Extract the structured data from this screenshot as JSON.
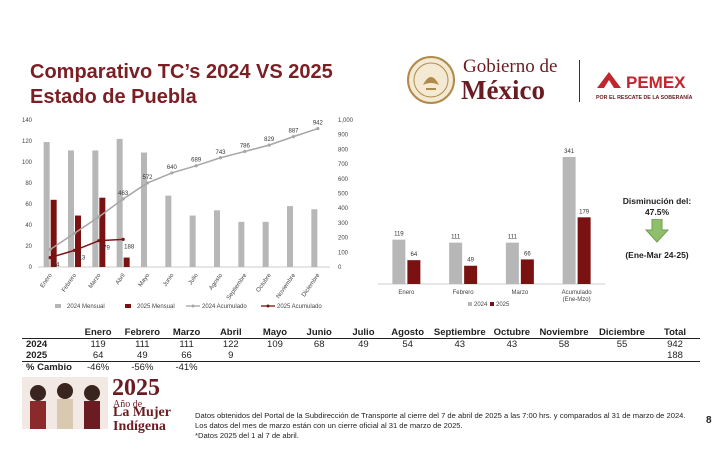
{
  "header": {
    "title_line1": "Comparativo TC’s 2024 VS 2025",
    "title_line2": "Estado de Puebla",
    "gobierno_line1": "Gobierno de",
    "gobierno_line2": "México",
    "pemex_name": "PEMEX",
    "pemex_tagline": "POR EL RESCATE DE LA SOBERANÍA"
  },
  "colors": {
    "gray_bar": "#b7b7b7",
    "red_bar": "#7b1212",
    "line_gray": "#a6a6a6",
    "line_red": "#7b1212",
    "title": "#7b1f24",
    "arrow": "#8fbf6a"
  },
  "chart_data": [
    {
      "type": "bar",
      "title": "",
      "categories": [
        "Enero",
        "Febrero",
        "Marzo",
        "Abril",
        "Mayo",
        "Junio",
        "Julio",
        "Agosto",
        "Septiembre",
        "Octubre",
        "Noviembre",
        "Diciembre"
      ],
      "y_left_ticks": [
        "0",
        "20",
        "40",
        "60",
        "80",
        "100",
        "120",
        "140"
      ],
      "y_right_ticks": [
        "0",
        "100",
        "200",
        "300",
        "400",
        "500",
        "600",
        "700",
        "800",
        "900",
        "1,000"
      ],
      "ylim_left": [
        0,
        140
      ],
      "ylim_right": [
        0,
        1000
      ],
      "series": [
        {
          "name": "2024 Mensual",
          "type": "bar",
          "axis": "left",
          "values": [
            119,
            111,
            111,
            122,
            109,
            68,
            49,
            54,
            43,
            43,
            58,
            55
          ]
        },
        {
          "name": "2025 Mensual",
          "type": "bar",
          "axis": "left",
          "values": [
            64,
            49,
            66,
            9,
            null,
            null,
            null,
            null,
            null,
            null,
            null,
            null
          ]
        },
        {
          "name": "2024 Acumulado",
          "type": "line",
          "axis": "right",
          "values": [
            119,
            230,
            341,
            463,
            572,
            640,
            689,
            743,
            786,
            829,
            887,
            942
          ],
          "labels": [
            "",
            "",
            "",
            "463",
            "572",
            "640",
            "689",
            "743",
            "786",
            "829",
            "887",
            "942"
          ]
        },
        {
          "name": "2025 Acumulado",
          "type": "line",
          "axis": "right",
          "values": [
            64,
            113,
            179,
            188,
            null,
            null,
            null,
            null,
            null,
            null,
            null,
            null
          ],
          "labels": [
            "64",
            "113",
            "179",
            "188",
            "",
            "",
            "",
            "",
            "",
            "",
            "",
            ""
          ]
        }
      ],
      "legend": "bottom",
      "grid": false
    },
    {
      "type": "bar",
      "title": "",
      "categories": [
        "Enero",
        "Febrero",
        "Marzo",
        "Acumulado (Ene-Mzo)"
      ],
      "series": [
        {
          "name": "2024",
          "values": [
            119,
            111,
            111,
            341
          ]
        },
        {
          "name": "2025",
          "values": [
            64,
            49,
            66,
            179
          ]
        }
      ],
      "legend": "bottom",
      "grid": false
    }
  ],
  "decrease": {
    "label_line1": "Disminución del:",
    "percent": "47.5%",
    "period": "(Ene-Mar 24-25)"
  },
  "table": {
    "headers": [
      "",
      "Enero",
      "Febrero",
      "Marzo",
      "Abril",
      "Mayo",
      "Junio",
      "Julio",
      "Agosto",
      "Septiembre",
      "Octubre",
      "Noviembre",
      "Diciembre",
      "Total"
    ],
    "rows": [
      [
        "2024",
        "119",
        "111",
        "111",
        "122",
        "109",
        "68",
        "49",
        "54",
        "43",
        "43",
        "58",
        "55",
        "942"
      ],
      [
        "2025",
        "64",
        "49",
        "66",
        "9",
        "",
        "",
        "",
        "",
        "",
        "",
        "",
        "",
        "188"
      ],
      [
        "% Cambio",
        "-46%",
        "-56%",
        "-41%",
        "",
        "",
        "",
        "",
        "",
        "",
        "",
        "",
        "",
        ""
      ]
    ]
  },
  "footer": {
    "year": "2025",
    "badge_line1": "Año de",
    "badge_line2": "La Mujer",
    "badge_line3": "Indígena",
    "note1": "Datos obtenidos del Portal de la Subdirección de Transporte al cierre del 7 de abril de 2025 a las 7:00 hrs. y comparados al 31 de marzo de 2024.",
    "note2": "Los datos del mes de marzo están con un cierre oficial al 31 de marzo de 2025.",
    "note3": "*Datos 2025 del 1 al 7 de abril.",
    "page_number": "8"
  }
}
